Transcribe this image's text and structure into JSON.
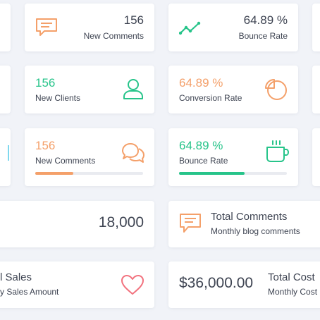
{
  "widgets": {
    "comments_top": {
      "value": "156",
      "label": "New Comments"
    },
    "bounce_top": {
      "value": "64.89 %",
      "label": "Bounce Rate"
    },
    "new_clients": {
      "value": "156",
      "label": "New Clients"
    },
    "conversion": {
      "value": "64.89 %",
      "label": "Conversion Rate"
    },
    "comments_progress": {
      "value": "156",
      "label": "New Comments",
      "progress": 0.35,
      "color": "#f4a06a"
    },
    "bounce_progress": {
      "value": "64.89 %",
      "label": "Bounce Rate",
      "progress": 0.61,
      "color": "#27c48a"
    },
    "total_count": {
      "value": "18,000"
    },
    "total_comments": {
      "title": "Total Comments",
      "subtitle": "Monthly blog comments"
    },
    "sales": {
      "title": "l Sales",
      "subtitle": "y Sales Amount"
    },
    "total_cost": {
      "value": "$36,000.00",
      "title": "Total Cost",
      "subtitle": "Monthly Cost"
    }
  },
  "colors": {
    "orange": "#f4a06a",
    "green": "#27c48a",
    "pink": "#f2727e"
  },
  "icons": [
    "chat-icon",
    "trend-line-icon",
    "user-icon",
    "pie-chart-icon",
    "chat-bubbles-icon",
    "coffee-cup-icon",
    "heart-icon"
  ]
}
